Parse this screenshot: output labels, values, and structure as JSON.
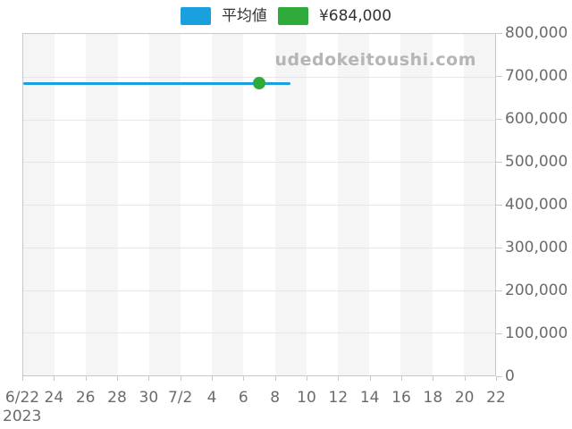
{
  "chart_data": {
    "type": "line",
    "title": "",
    "watermark": "udedokeitoushi.com",
    "x_axis": {
      "labels": [
        "6/22",
        "24",
        "26",
        "28",
        "30",
        "7/2",
        "4",
        "6",
        "8",
        "10",
        "12",
        "14",
        "16",
        "18",
        "20",
        "22"
      ],
      "year_label": "2023",
      "start_date": "6/22",
      "end_date": "7/22",
      "total_days": 30,
      "tick_interval_days": 2
    },
    "y_axis": {
      "min": 0,
      "max": 800000,
      "tick_step": 100000,
      "labels": [
        "800,000",
        "700,000",
        "600,000",
        "500,000",
        "400,000",
        "300,000",
        "200,000",
        "100,000",
        "0"
      ]
    },
    "series": [
      {
        "name": "平均値",
        "type": "line",
        "color": "#1aa0df",
        "value": 684000,
        "start_date": "6/22",
        "end_date": "7/9",
        "start_day": 0,
        "end_day": 17
      },
      {
        "name": "¥684,000",
        "type": "point",
        "color": "#2daa3a",
        "value": 684000,
        "date": "7/7",
        "day": 15
      }
    ],
    "plot_style": {
      "stripe_color": "#f5f5f5",
      "grid_color": "#e6e6e6",
      "border_color": "#c9c9c9",
      "label_color": "#6b6b6b",
      "legend_position": "top",
      "grid": "horizontal"
    }
  }
}
